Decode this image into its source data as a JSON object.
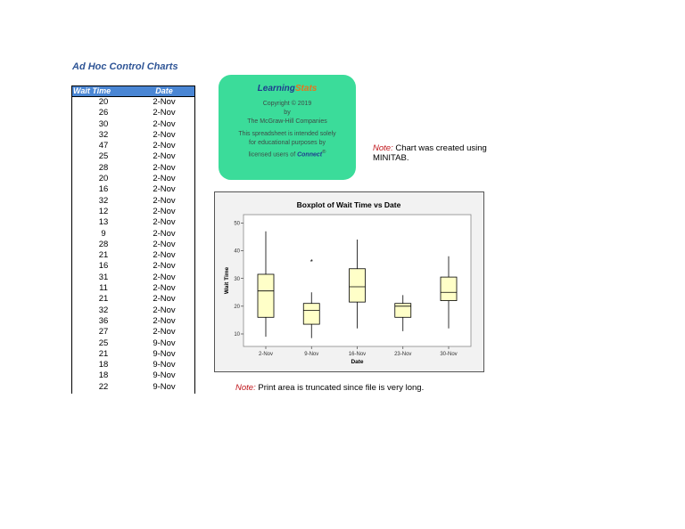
{
  "page_title": "Ad Hoc Control Charts",
  "table": {
    "headers": [
      "Wait Time",
      "Date"
    ],
    "rows": [
      [
        "20",
        "2-Nov"
      ],
      [
        "26",
        "2-Nov"
      ],
      [
        "30",
        "2-Nov"
      ],
      [
        "32",
        "2-Nov"
      ],
      [
        "47",
        "2-Nov"
      ],
      [
        "25",
        "2-Nov"
      ],
      [
        "28",
        "2-Nov"
      ],
      [
        "20",
        "2-Nov"
      ],
      [
        "16",
        "2-Nov"
      ],
      [
        "32",
        "2-Nov"
      ],
      [
        "12",
        "2-Nov"
      ],
      [
        "13",
        "2-Nov"
      ],
      [
        "9",
        "2-Nov"
      ],
      [
        "28",
        "2-Nov"
      ],
      [
        "21",
        "2-Nov"
      ],
      [
        "16",
        "2-Nov"
      ],
      [
        "31",
        "2-Nov"
      ],
      [
        "11",
        "2-Nov"
      ],
      [
        "21",
        "2-Nov"
      ],
      [
        "32",
        "2-Nov"
      ],
      [
        "36",
        "2-Nov"
      ],
      [
        "27",
        "2-Nov"
      ],
      [
        "25",
        "9-Nov"
      ],
      [
        "21",
        "9-Nov"
      ],
      [
        "18",
        "9-Nov"
      ],
      [
        "18",
        "9-Nov"
      ],
      [
        "22",
        "9-Nov"
      ]
    ]
  },
  "badge": {
    "logo_part1": "Learning",
    "logo_part2": "Stats",
    "copyright": "Copyright © 2019",
    "by": "by",
    "company": "The McGraw-Hill Companies",
    "notice1": "This spreadsheet is intended solely",
    "notice2": "for educational purposes by",
    "notice3": "licensed users of",
    "connect": "Connect",
    "registered": "®",
    "colors": {
      "background": "#3bdc9a",
      "logo_blue": "#1f3c8f",
      "logo_orange": "#e8741c"
    }
  },
  "notes": {
    "label": "Note:",
    "chart_note": "Chart was created using MINITAB.",
    "print_note": "Print area is truncated since file is very long."
  },
  "chart_data": {
    "type": "boxplot",
    "title": "Boxplot of Wait Time vs Date",
    "xlabel": "Date",
    "ylabel": "Wait Time",
    "categories": [
      "2-Nov",
      "9-Nov",
      "16-Nov",
      "23-Nov",
      "30-Nov"
    ],
    "yticks": [
      10,
      20,
      30,
      40,
      50
    ],
    "ylim": [
      5.5,
      53
    ],
    "boxes": [
      {
        "whisker_low": 9,
        "q1": 16,
        "median": 25.5,
        "q3": 31.5,
        "whisker_high": 47
      },
      {
        "whisker_low": 8.5,
        "q1": 13.5,
        "median": 18.5,
        "q3": 21,
        "whisker_high": 25,
        "outliers": [
          36
        ]
      },
      {
        "whisker_low": 12,
        "q1": 21.5,
        "median": 27,
        "q3": 33.5,
        "whisker_high": 44
      },
      {
        "whisker_low": 11,
        "q1": 16,
        "median": 20,
        "q3": 21,
        "whisker_high": 24
      },
      {
        "whisker_low": 12,
        "q1": 22,
        "median": 25,
        "q3": 30.5,
        "whisker_high": 38
      }
    ],
    "box_color": "#ffffc8",
    "panel_color": "#f2f2f2"
  }
}
